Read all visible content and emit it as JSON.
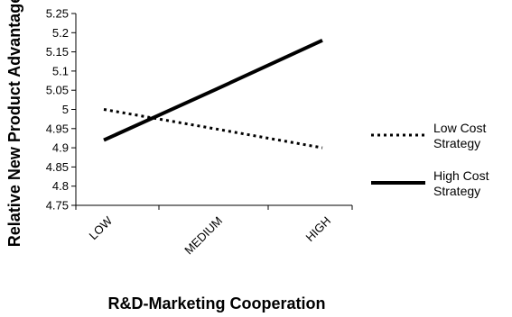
{
  "chart_data": {
    "type": "line",
    "categories": [
      "LOW",
      "MEDIUM",
      "HIGH"
    ],
    "series": [
      {
        "name": "Low Cost Strategy",
        "values": [
          5.0,
          4.95,
          4.9
        ],
        "style": "dotted",
        "color": "#000000"
      },
      {
        "name": "High Cost Strategy",
        "values": [
          4.92,
          5.05,
          5.18
        ],
        "style": "solid",
        "color": "#000000"
      }
    ],
    "xlabel": "R&D-Marketing Cooperation",
    "ylabel": "Relative New Product Advantage",
    "ylim": [
      4.75,
      5.25
    ],
    "yticks": [
      "4.75",
      "4.8",
      "4.85",
      "4.9",
      "4.95",
      "5",
      "5.05",
      "5.1",
      "5.15",
      "5.2",
      "5.25"
    ],
    "grid": false,
    "legend": {
      "placement": "right",
      "entries": [
        {
          "lines": [
            "Low Cost",
            "Strategy"
          ]
        },
        {
          "lines": [
            "High Cost",
            "Strategy"
          ]
        }
      ]
    }
  }
}
